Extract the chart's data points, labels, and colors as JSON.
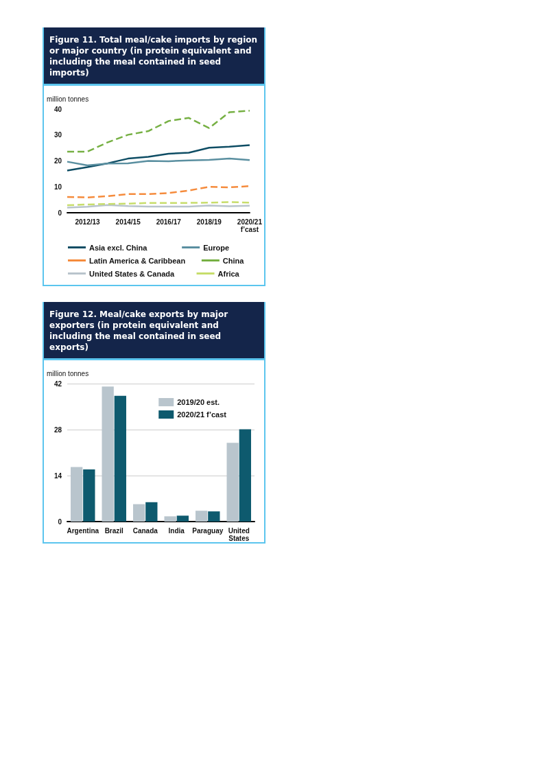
{
  "chart_data": [
    {
      "type": "line",
      "title": "Figure 11. Total meal/cake imports by region or major country (in protein equivalent and including the meal contained in seed imports)",
      "ylabel": "million tonnes",
      "categories": [
        null,
        "2012/13",
        null,
        "2014/15",
        null,
        "2016/17",
        null,
        "2018/19",
        null,
        "2020/21\nf’cast"
      ],
      "ylim": [
        0,
        40
      ],
      "yticks": [
        0,
        10,
        20,
        30,
        40
      ],
      "grid": false,
      "legend": "bottom",
      "marker": "none",
      "series": [
        {
          "name": "Asia excl. China",
          "color": "#0e4d64",
          "line_style": "solid",
          "values": [
            16.3,
            17.6,
            19.1,
            20.9,
            21.6,
            22.8,
            23.2,
            25.1,
            25.5,
            26.1
          ]
        },
        {
          "name": "Europe",
          "color": "#5a8fa0",
          "line_style": "solid",
          "values": [
            19.7,
            18.3,
            19.0,
            19.1,
            20.0,
            19.9,
            20.2,
            20.4,
            20.9,
            20.3
          ]
        },
        {
          "name": "Latin America & Caribbean",
          "color": "#f58b3c",
          "line_style": "dashed",
          "values": [
            6.1,
            5.9,
            6.4,
            7.2,
            7.2,
            7.6,
            8.6,
            10.0,
            9.8,
            10.3
          ]
        },
        {
          "name": "China",
          "color": "#76b043",
          "line_style": "dashed",
          "values": [
            23.6,
            23.6,
            27.2,
            30.1,
            31.5,
            35.4,
            36.6,
            32.7,
            38.8,
            39.4
          ]
        },
        {
          "name": "United States & Canada",
          "color": "#b9c4cc",
          "line_style": "solid",
          "values": [
            2.0,
            2.3,
            3.0,
            2.6,
            2.4,
            2.4,
            2.4,
            2.8,
            2.5,
            2.7
          ]
        },
        {
          "name": "Africa",
          "color": "#c7dd6b",
          "line_style": "dashed",
          "values": [
            2.9,
            3.2,
            3.4,
            3.5,
            3.8,
            3.8,
            3.8,
            3.9,
            4.1,
            3.9
          ]
        }
      ]
    },
    {
      "type": "bar",
      "title": "Figure 12. Meal/cake exports by major exporters (in protein equivalent and including the meal contained in seed exports)",
      "ylabel": "million tonnes",
      "categories": [
        "Argentina",
        "Brazil",
        "Canada",
        "India",
        "Paraguay",
        "United\nStates"
      ],
      "ylim": [
        0,
        42
      ],
      "yticks": [
        0,
        14,
        28,
        42
      ],
      "grid": "y",
      "legend": "top right",
      "series": [
        {
          "name": "2019/20 est.",
          "color": "#b9c5cd",
          "values": [
            16.6,
            41.1,
            5.3,
            1.6,
            3.3,
            24.0
          ]
        },
        {
          "name": "2020/21 f’cast",
          "color": "#0e5a6e",
          "values": [
            15.9,
            38.3,
            5.9,
            1.8,
            3.1,
            28.1
          ]
        }
      ]
    }
  ]
}
